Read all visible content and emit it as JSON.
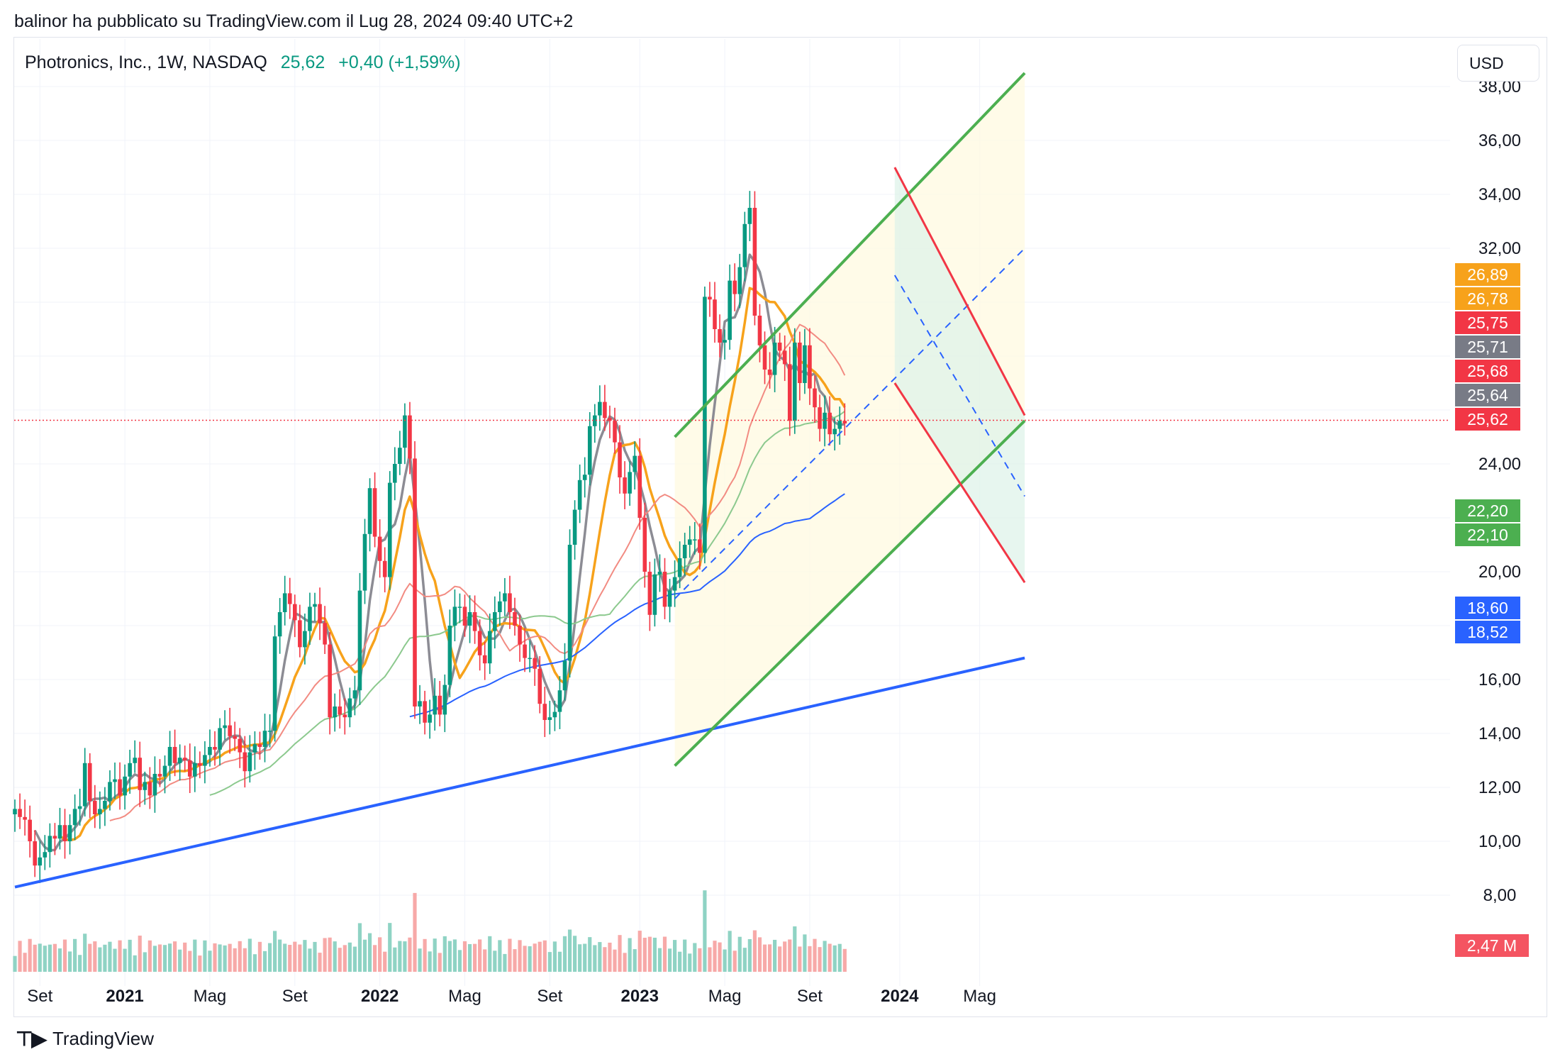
{
  "caption": "balinor ha pubblicato su TradingView.com il Lug 28, 2024 09:40 UTC+2",
  "header": {
    "symbol": "Photronics, Inc., 1W, NASDAQ",
    "price": "25,62",
    "change": "+0,40 (+1,59%)",
    "currency": "USD"
  },
  "footer": {
    "brand": "TradingView",
    "logo_icon": "tradingview-logo-icon"
  },
  "colors": {
    "up": "#089981",
    "down": "#f23645",
    "channel_green": "#4caf50",
    "channel_red": "#f23645",
    "ma_gray": "#8c8c94",
    "ma_orange": "#f7a21b",
    "ma_salmon": "#f28b82",
    "ma_lightgreen": "#8cc98e",
    "ma_blue": "#2962ff",
    "trendline_blue": "#2962ff"
  },
  "chart_data": {
    "type": "candlestick",
    "timeframe": "1W",
    "ylim": [
      7,
      39
    ],
    "y_ticks": [
      "38,00",
      "36,00",
      "34,00",
      "32,00",
      "24,00",
      "20,00",
      "16,00",
      "14,00",
      "12,00",
      "10,00",
      "8,00"
    ],
    "x_ticks": [
      {
        "label": "Set",
        "bold": false,
        "i": 5
      },
      {
        "label": "2021",
        "bold": true,
        "i": 22
      },
      {
        "label": "Mag",
        "bold": false,
        "i": 39
      },
      {
        "label": "Set",
        "bold": false,
        "i": 56
      },
      {
        "label": "2022",
        "bold": true,
        "i": 73
      },
      {
        "label": "Mag",
        "bold": false,
        "i": 90
      },
      {
        "label": "Set",
        "bold": false,
        "i": 107
      },
      {
        "label": "2023",
        "bold": true,
        "i": 125
      },
      {
        "label": "Mag",
        "bold": false,
        "i": 142
      },
      {
        "label": "Set",
        "bold": false,
        "i": 159
      },
      {
        "label": "2024",
        "bold": true,
        "i": 177
      },
      {
        "label": "Mag",
        "bold": false,
        "i": 193
      }
    ],
    "close": [
      11.2,
      10.9,
      10.8,
      10.0,
      9.1,
      9.4,
      9.6,
      10.2,
      10.1,
      10.6,
      10.0,
      10.6,
      11.2,
      11.3,
      12.9,
      11.5,
      11.0,
      11.2,
      11.5,
      12.2,
      12.3,
      11.7,
      12.4,
      12.9,
      13.1,
      11.9,
      12.2,
      11.7,
      12.5,
      12.4,
      12.8,
      13.5,
      12.9,
      13.1,
      13.0,
      12.4,
      12.9,
      12.8,
      13.2,
      13.5,
      13.4,
      14.2,
      14.3,
      13.9,
      13.8,
      13.3,
      12.6,
      13.3,
      13.6,
      13.5,
      14.1,
      14.1,
      17.6,
      18.5,
      19.2,
      18.8,
      18.2,
      17.2,
      17.8,
      18.7,
      18.8,
      18.1,
      17.3,
      14.6,
      15.0,
      14.7,
      14.6,
      15.3,
      15.6,
      19.3,
      21.4,
      23.1,
      21.3,
      20.4,
      19.8,
      23.3,
      24.0,
      24.6,
      25.8,
      24.2,
      15.0,
      15.2,
      14.4,
      14.7,
      15.4,
      14.7,
      15.8,
      18.0,
      18.7,
      18.7,
      18.0,
      18.5,
      17.8,
      16.9,
      16.6,
      17.8,
      18.5,
      18.9,
      19.2,
      18.5,
      18.0,
      17.3,
      16.8,
      16.8,
      16.4,
      15.1,
      14.5,
      14.6,
      14.8,
      15.6,
      16.7,
      21.0,
      22.3,
      23.4,
      23.6,
      25.4,
      25.8,
      26.3,
      25.7,
      25.6,
      24.8,
      23.5,
      22.9,
      23.7,
      24.3,
      22.0,
      20.0,
      18.4,
      19.9,
      20.0,
      18.7,
      19.3,
      19.8,
      20.5,
      21.0,
      21.2,
      21.2,
      20.7,
      30.2,
      30.1,
      29.0,
      28.5,
      28.6,
      30.8,
      30.3,
      31.3,
      32.9,
      33.5,
      29.5,
      28.4,
      27.5,
      27.3,
      28.5,
      28.2,
      27.7,
      25.6,
      28.5,
      27.0,
      28.4,
      26.8,
      26.1,
      25.3,
      25.9,
      25.1,
      25.3,
      25.6,
      25.5
    ],
    "volume_scale_m": [
      0,
      8
    ],
    "current_volume": "2,47 M",
    "price_badges": [
      {
        "label": "26,89",
        "color": "#f7a21b",
        "value": 26.89
      },
      {
        "label": "26,78",
        "color": "#f7a21b",
        "value": 26.78
      },
      {
        "label": "25,75",
        "color": "#f23645",
        "value": 25.75
      },
      {
        "label": "25,71",
        "color": "#787b86",
        "value": 25.71
      },
      {
        "label": "25,68",
        "color": "#f23645",
        "value": 25.68
      },
      {
        "label": "25,64",
        "color": "#787b86",
        "value": 25.64
      },
      {
        "label": "25,62",
        "color": "#f23645",
        "value": 25.62
      },
      {
        "label": "22,20",
        "color": "#4caf50",
        "value": 22.2
      },
      {
        "label": "22,10",
        "color": "#4caf50",
        "value": 22.1
      },
      {
        "label": "18,60",
        "color": "#2962ff",
        "value": 18.6
      },
      {
        "label": "18,52",
        "color": "#2962ff",
        "value": 18.52
      }
    ],
    "volume_badge": {
      "label": "2,47 M",
      "color": "#f23645"
    },
    "drawings": {
      "blue_trendline": {
        "from": {
          "i": 0,
          "v": 8.3
        },
        "to": {
          "i": 202,
          "v": 16.8
        }
      },
      "green_channel": {
        "upper": {
          "from": {
            "i": 132,
            "v": 25.0
          },
          "to": {
            "i": 202,
            "v": 38.5
          }
        },
        "lower": {
          "from": {
            "i": 132,
            "v": 12.8
          },
          "to": {
            "i": 202,
            "v": 25.6
          }
        },
        "mid": {
          "from": {
            "i": 132,
            "v": 19.0
          },
          "to": {
            "i": 202,
            "v": 32.0
          }
        }
      },
      "red_channel": {
        "upper": {
          "from": {
            "i": 176,
            "v": 35.0
          },
          "to": {
            "i": 202,
            "v": 25.8
          }
        },
        "lower": {
          "from": {
            "i": 176,
            "v": 27.0
          },
          "to": {
            "i": 202,
            "v": 19.6
          }
        },
        "mid": {
          "from": {
            "i": 176,
            "v": 31.0
          },
          "to": {
            "i": 202,
            "v": 22.8
          }
        }
      }
    },
    "last_price_line": 25.62,
    "grid": true,
    "legend": "none"
  }
}
